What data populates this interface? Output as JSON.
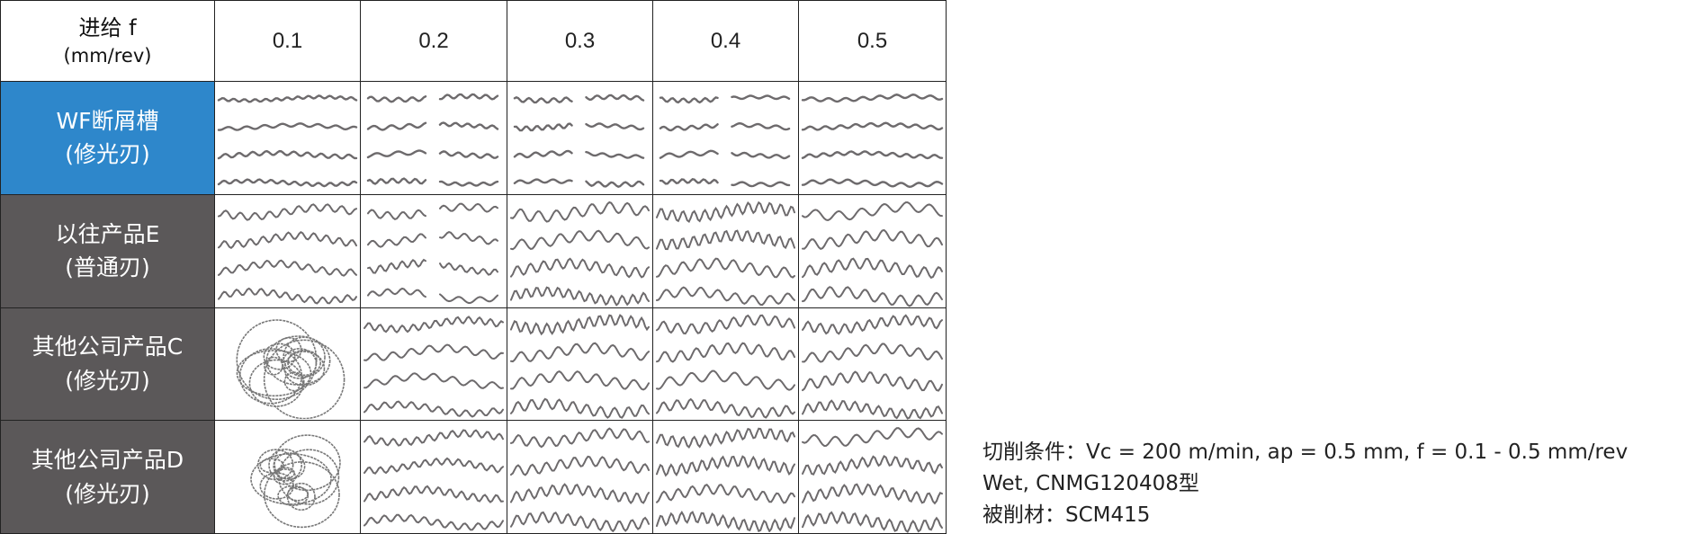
{
  "table": {
    "corner": [
      "进给 f",
      "(mm/rev)"
    ],
    "columns": [
      "0.1",
      "0.2",
      "0.3",
      "0.4",
      "0.5"
    ],
    "rows": [
      [
        "WF断屑槽",
        "(修光刃)"
      ],
      [
        "以往产品E",
        "(普通刃)"
      ],
      [
        "其他公司产品C",
        "(修光刃)"
      ],
      [
        "其他公司产品D",
        "(修光刃)"
      ]
    ]
  },
  "notes": [
    "切削条件：Vc = 200 m/min,  ap = 0.5 mm,  f = 0.1 - 0.5 mm/rev",
    "Wet,  CNMG120408型",
    "被削材：SCM415"
  ]
}
